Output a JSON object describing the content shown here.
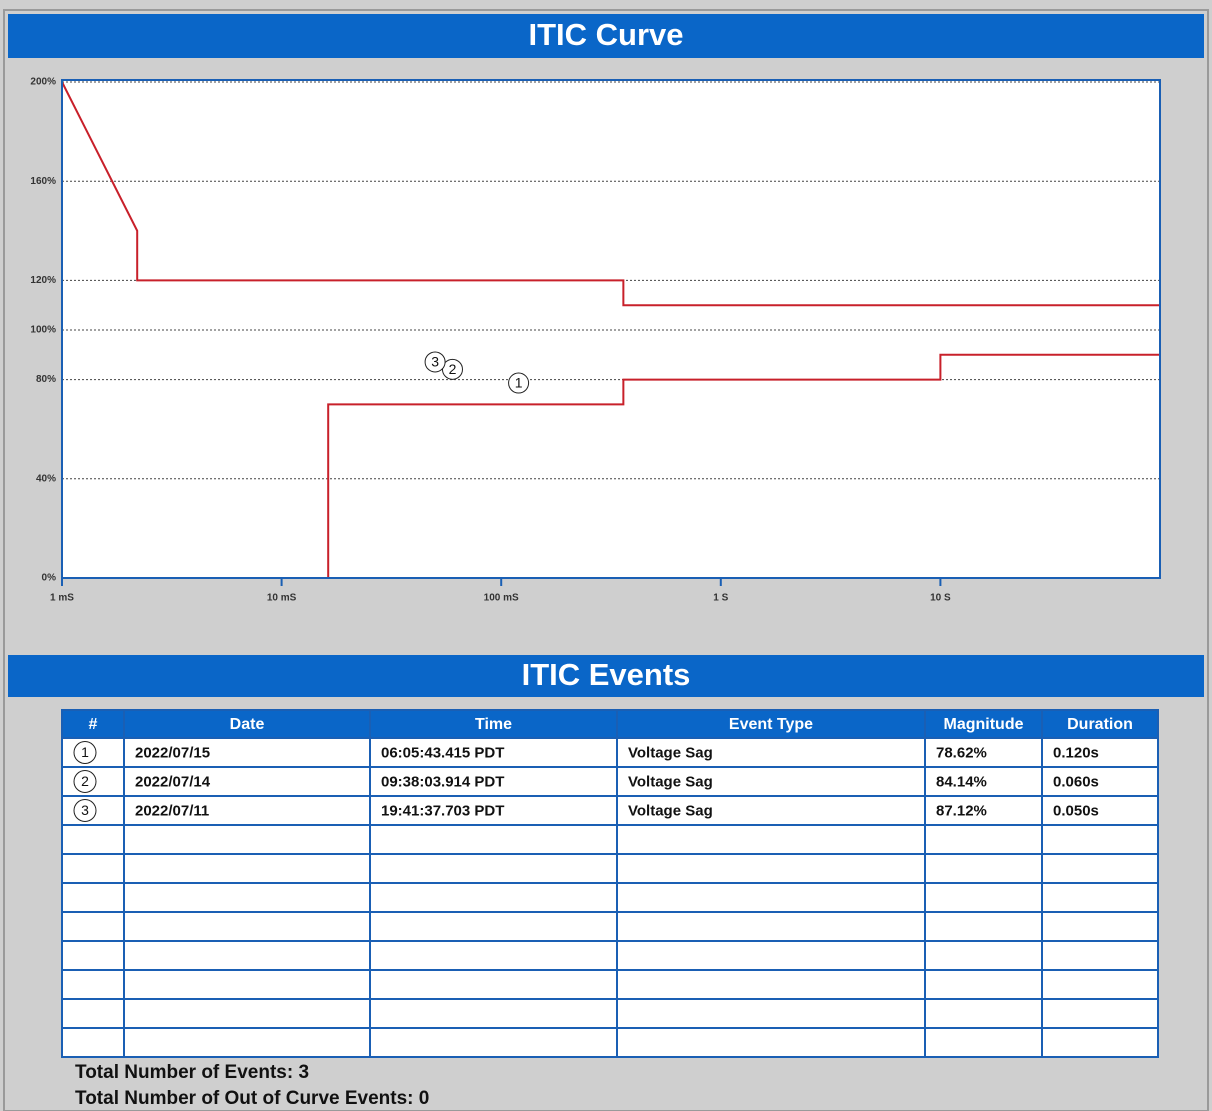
{
  "chart_data": {
    "type": "line",
    "title": "ITIC Curve",
    "xscale": "log",
    "xlim": [
      0.001,
      100
    ],
    "xticks": [
      {
        "value": 0.001,
        "label": "1 mS"
      },
      {
        "value": 0.01,
        "label": "10 mS"
      },
      {
        "value": 0.1,
        "label": "100 mS"
      },
      {
        "value": 1,
        "label": "1 S"
      },
      {
        "value": 10,
        "label": "10 S"
      }
    ],
    "ylim": [
      0,
      200
    ],
    "yticks": [
      {
        "value": 0,
        "label": "0%"
      },
      {
        "value": 40,
        "label": "40%"
      },
      {
        "value": 80,
        "label": "80%"
      },
      {
        "value": 100,
        "label": "100%"
      },
      {
        "value": 120,
        "label": "120%"
      },
      {
        "value": 160,
        "label": "160%"
      },
      {
        "value": 200,
        "label": "200%"
      }
    ],
    "grid": true,
    "series": [
      {
        "color": "#c8202a",
        "x": [
          0.001,
          0.0022,
          0.0022,
          0.36,
          0.36,
          100
        ],
        "values": [
          200,
          140,
          120,
          120,
          110,
          110
        ]
      },
      {
        "color": "#c8202a",
        "x": [
          0.0163,
          0.0163,
          0.36,
          0.36,
          10,
          10,
          100
        ],
        "values": [
          0,
          70,
          70,
          80,
          80,
          90,
          90
        ]
      }
    ],
    "events": [
      {
        "label": "1",
        "x": 0.12,
        "y": 78.62
      },
      {
        "label": "2",
        "x": 0.06,
        "y": 84.14
      },
      {
        "label": "3",
        "x": 0.05,
        "y": 87.12
      }
    ]
  },
  "events_section": {
    "title": "ITIC Events",
    "table": {
      "header": [
        "#",
        "Date",
        "Time",
        "Event Type",
        "Magnitude",
        "Duration"
      ],
      "rows": [
        [
          "1",
          "2022/07/15",
          "06:05:43.415 PDT",
          "Voltage Sag",
          "78.62%",
          "0.120s"
        ],
        [
          "2",
          "2022/07/14",
          "09:38:03.914 PDT",
          "Voltage Sag",
          "84.14%",
          "0.060s"
        ],
        [
          "3",
          "2022/07/11",
          "19:41:37.703 PDT",
          "Voltage Sag",
          "87.12%",
          "0.050s"
        ]
      ]
    },
    "totals": [
      "Total Number of Events: 3",
      "Total Number of Out of Curve Events: 0"
    ]
  }
}
